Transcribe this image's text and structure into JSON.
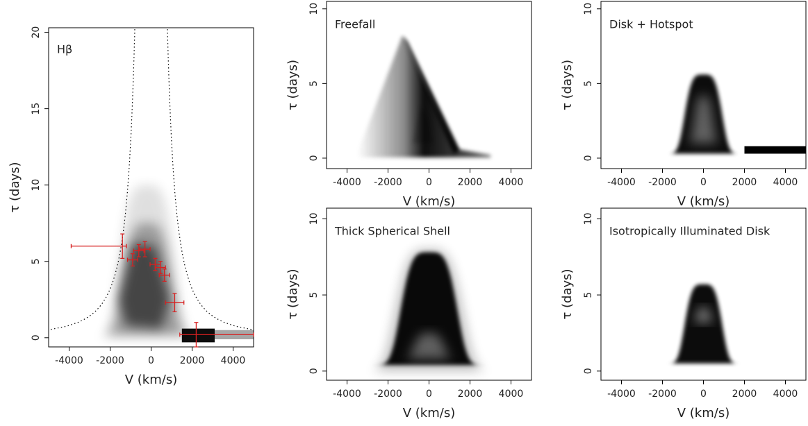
{
  "chart_data": [
    {
      "type": "errorbar",
      "label": "Hβ",
      "xlabel": "V (km/s)",
      "ylabel": "τ (days)",
      "xlim": [
        -5000,
        5000
      ],
      "ylim": [
        -0.6,
        20.3
      ],
      "xticks": [
        -4000,
        -2000,
        0,
        2000,
        4000
      ],
      "yticks": [
        0,
        5,
        10,
        15,
        20
      ],
      "color": "#d62020",
      "x": [
        -1400,
        -900,
        -600,
        -300,
        200,
        450,
        650,
        1150,
        2200
      ],
      "y": [
        6.0,
        5.1,
        5.7,
        5.8,
        4.8,
        4.6,
        4.1,
        2.3,
        0.2
      ],
      "xerr_minus": [
        2500,
        250,
        250,
        250,
        250,
        250,
        250,
        450,
        800
      ],
      "xerr_plus": [
        200,
        250,
        250,
        250,
        250,
        250,
        250,
        450,
        2800
      ],
      "yerr": [
        0.8,
        0.4,
        0.4,
        0.5,
        0.4,
        0.4,
        0.4,
        0.6,
        0.8
      ]
    },
    {
      "type": "image",
      "title": "Freefall",
      "xlabel": "V (km/s)",
      "ylabel": "τ (days)",
      "xlim": [
        -5000,
        5000
      ],
      "ylim": [
        -0.7,
        10.5
      ],
      "xticks": [
        -4000,
        -2000,
        0,
        2000,
        4000
      ],
      "yticks": [
        0,
        5,
        10
      ]
    },
    {
      "type": "image",
      "title": "Disk + Hotspot",
      "xlabel": "V (km/s)",
      "ylabel": "τ (days)",
      "xlim": [
        -5000,
        5000
      ],
      "ylim": [
        -0.7,
        10.5
      ],
      "xticks": [
        -4000,
        -2000,
        0,
        2000,
        4000
      ],
      "yticks": [
        0,
        5,
        10
      ]
    },
    {
      "type": "image",
      "title": "Thick Spherical Shell",
      "xlabel": "V (km/s)",
      "ylabel": "τ (days)",
      "xlim": [
        -5000,
        5000
      ],
      "ylim": [
        -0.6,
        10.7
      ],
      "xticks": [
        -4000,
        -2000,
        0,
        2000,
        4000
      ],
      "yticks": [
        0,
        5,
        10
      ]
    },
    {
      "type": "image",
      "title": "Isotropically Illuminated Disk",
      "xlabel": "V (km/s)",
      "ylabel": "τ (days)",
      "xlim": [
        -5000,
        5000
      ],
      "ylim": [
        -0.6,
        10.7
      ],
      "xticks": [
        -4000,
        -2000,
        0,
        2000,
        4000
      ],
      "yticks": [
        0,
        5,
        10
      ]
    }
  ]
}
